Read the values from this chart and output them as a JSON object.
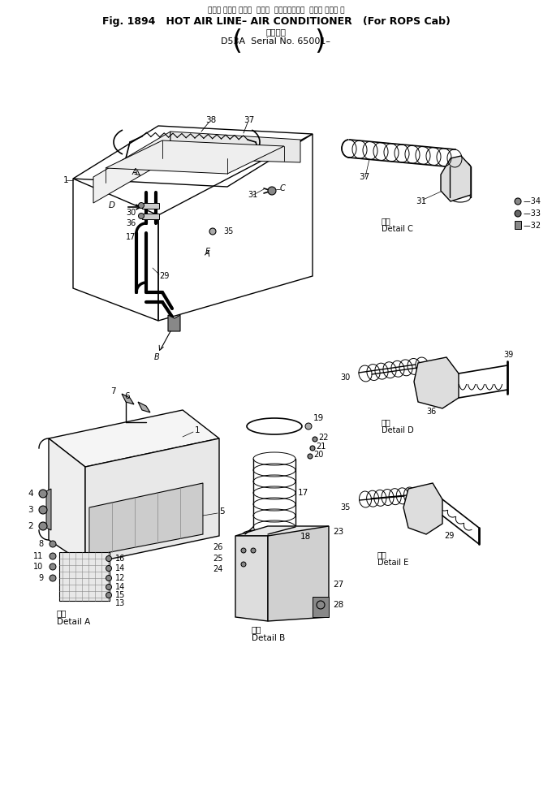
{
  "title_line1": "ホット エアー ライン  エアー  コンディショナ  ロプス キャブ 用",
  "title_line2": "Fig. 1894   HOT AIR LINE– AIR CONDITIONER   (For ROPS Cab)",
  "title_line3": "適用号機",
  "title_line4": "D53A  Serial No. 65001–",
  "bg_color": "#ffffff",
  "lc": "#000000",
  "tc": "#000000"
}
